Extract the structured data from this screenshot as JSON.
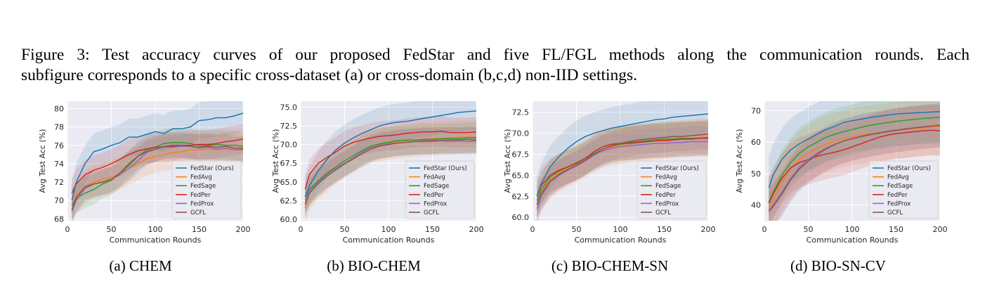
{
  "caption": {
    "line1": "Figure 3: Test accuracy curves of our proposed FedStar and five FL/FGL methods along the communication rounds. Each",
    "line2": "subfigure corresponds to a specific cross-dataset (a) or cross-domain (b,c,d) non-IID settings."
  },
  "series_names": [
    "FedStar (Ours)",
    "FedAvg",
    "FedSage",
    "FedPer",
    "FedProx",
    "GCFL"
  ],
  "series_colors": [
    "#1f77b4",
    "#ff7f0e",
    "#2ca02c",
    "#d62728",
    "#9467bd",
    "#8c564b"
  ],
  "chart_data": [
    {
      "type": "line",
      "subcaption": "(a) CHEM",
      "xlabel": "Communication Rounds",
      "ylabel": "Avg Test Acc (%)",
      "xlim": [
        0,
        200
      ],
      "ylim": [
        67.8,
        80.8
      ],
      "xticks": [
        0,
        50,
        100,
        150,
        200
      ],
      "yticks": [
        68,
        70,
        72,
        74,
        76,
        78,
        80
      ],
      "ytick_labels": [
        "68",
        "70",
        "72",
        "74",
        "76",
        "78",
        "80"
      ],
      "grid": true,
      "legend_position": "lower-right",
      "x": [
        5,
        10,
        20,
        30,
        40,
        50,
        60,
        70,
        80,
        90,
        100,
        110,
        120,
        130,
        140,
        150,
        160,
        170,
        180,
        190,
        200
      ],
      "series": [
        {
          "name": "FedStar (Ours)",
          "values": [
            70.0,
            72.0,
            74.0,
            75.3,
            75.6,
            76.0,
            76.3,
            76.9,
            76.9,
            77.2,
            77.5,
            77.3,
            77.8,
            77.8,
            78.0,
            78.7,
            78.8,
            79.0,
            79.0,
            79.2,
            79.5
          ]
        },
        {
          "name": "FedAvg",
          "values": [
            69.5,
            70.5,
            71.5,
            72.0,
            72.3,
            72.5,
            73.0,
            73.5,
            74.0,
            74.5,
            74.8,
            75.0,
            75.2,
            75.3,
            75.5,
            75.5,
            75.6,
            75.5,
            75.6,
            75.7,
            75.6
          ]
        },
        {
          "name": "FedSage",
          "values": [
            69.5,
            70.2,
            70.8,
            71.2,
            71.8,
            72.2,
            73.0,
            73.8,
            74.8,
            75.5,
            75.8,
            76.2,
            76.3,
            76.3,
            76.2,
            76.0,
            76.0,
            76.1,
            76.0,
            76.0,
            75.9
          ]
        },
        {
          "name": "FedPer",
          "values": [
            70.8,
            71.8,
            72.8,
            73.3,
            73.6,
            74.0,
            74.5,
            75.0,
            75.4,
            75.6,
            75.8,
            75.8,
            75.9,
            76.0,
            76.0,
            76.1,
            76.1,
            76.2,
            76.4,
            76.5,
            76.7
          ]
        },
        {
          "name": "FedProx",
          "values": [
            68.8,
            70.0,
            71.3,
            71.8,
            72.0,
            72.3,
            72.8,
            73.5,
            74.3,
            75.2,
            75.6,
            75.8,
            75.8,
            75.9,
            75.9,
            75.7,
            75.8,
            75.6,
            75.7,
            75.5,
            75.5
          ]
        },
        {
          "name": "GCFL",
          "values": [
            69.0,
            70.3,
            71.5,
            71.8,
            72.0,
            72.3,
            73.0,
            74.0,
            74.8,
            75.3,
            75.6,
            75.9,
            76.0,
            76.0,
            75.9,
            75.8,
            75.9,
            75.8,
            75.9,
            75.7,
            75.7
          ]
        }
      ]
    },
    {
      "type": "line",
      "subcaption": "(b) BIO-CHEM",
      "xlabel": "Communication Rounds",
      "ylabel": "Avg Test Acc (%)",
      "xlim": [
        0,
        200
      ],
      "ylim": [
        59.8,
        75.8
      ],
      "xticks": [
        0,
        50,
        100,
        150,
        200
      ],
      "yticks": [
        60.0,
        62.5,
        65.0,
        67.5,
        70.0,
        72.5,
        75.0
      ],
      "ytick_labels": [
        "60.0",
        "62.5",
        "65.0",
        "67.5",
        "70.0",
        "72.5",
        "75.0"
      ],
      "grid": true,
      "legend_position": "lower-right",
      "x": [
        5,
        10,
        20,
        30,
        40,
        50,
        60,
        70,
        80,
        90,
        100,
        110,
        120,
        130,
        140,
        150,
        160,
        170,
        180,
        190,
        200
      ],
      "series": [
        {
          "name": "FedStar (Ours)",
          "values": [
            63.0,
            64.5,
            66.5,
            68.0,
            69.3,
            70.2,
            70.9,
            71.5,
            72.0,
            72.5,
            72.8,
            73.0,
            73.1,
            73.3,
            73.5,
            73.7,
            73.9,
            74.1,
            74.3,
            74.4,
            74.5
          ]
        },
        {
          "name": "FedAvg",
          "values": [
            61.5,
            63.5,
            65.0,
            66.0,
            67.0,
            67.8,
            68.5,
            69.2,
            69.8,
            70.0,
            70.2,
            70.4,
            70.5,
            70.6,
            70.7,
            70.8,
            70.8,
            70.9,
            71.0,
            71.0,
            71.0
          ]
        },
        {
          "name": "FedSage",
          "values": [
            63.0,
            64.0,
            65.2,
            66.2,
            67.0,
            67.8,
            68.5,
            69.2,
            69.8,
            70.1,
            70.3,
            70.5,
            70.6,
            70.6,
            70.7,
            70.7,
            70.8,
            70.8,
            70.8,
            70.9,
            70.9
          ]
        },
        {
          "name": "FedPer",
          "values": [
            64.0,
            66.0,
            67.5,
            68.3,
            69.0,
            69.8,
            70.3,
            70.6,
            70.9,
            71.1,
            71.2,
            71.3,
            71.5,
            71.6,
            71.7,
            71.7,
            71.8,
            71.6,
            71.6,
            71.6,
            71.7
          ]
        },
        {
          "name": "FedProx",
          "values": [
            62.5,
            63.8,
            65.0,
            66.0,
            66.8,
            67.5,
            68.2,
            69.0,
            69.6,
            69.9,
            70.1,
            70.2,
            70.3,
            70.4,
            70.4,
            70.4,
            70.5,
            70.4,
            70.5,
            70.4,
            70.5
          ]
        },
        {
          "name": "GCFL",
          "values": [
            62.0,
            63.5,
            64.8,
            65.8,
            66.6,
            67.4,
            68.1,
            68.8,
            69.4,
            69.8,
            70.0,
            70.2,
            70.3,
            70.4,
            70.5,
            70.5,
            70.6,
            70.6,
            70.6,
            70.7,
            70.6
          ]
        }
      ]
    },
    {
      "type": "line",
      "subcaption": "(c) BIO-CHEM-SN",
      "xlabel": "Communication Rounds",
      "ylabel": "Avg Test Acc (%)",
      "xlim": [
        0,
        200
      ],
      "ylim": [
        59.6,
        73.8
      ],
      "xticks": [
        0,
        50,
        100,
        150,
        200
      ],
      "yticks": [
        60.0,
        62.5,
        65.0,
        67.5,
        70.0,
        72.5
      ],
      "ytick_labels": [
        "60.0",
        "62.5",
        "65.0",
        "67.5",
        "70.0",
        "72.5"
      ],
      "grid": true,
      "legend_position": "lower-right",
      "x": [
        5,
        10,
        20,
        30,
        40,
        50,
        60,
        70,
        80,
        90,
        100,
        110,
        120,
        130,
        140,
        150,
        160,
        170,
        180,
        190,
        200
      ],
      "series": [
        {
          "name": "FedStar (Ours)",
          "values": [
            62.5,
            64.0,
            66.0,
            67.2,
            68.2,
            69.0,
            69.6,
            70.0,
            70.3,
            70.6,
            70.8,
            71.0,
            71.2,
            71.4,
            71.6,
            71.7,
            71.9,
            72.0,
            72.1,
            72.2,
            72.3
          ]
        },
        {
          "name": "FedAvg",
          "values": [
            61.5,
            63.0,
            64.5,
            65.3,
            65.9,
            66.4,
            67.0,
            67.6,
            68.1,
            68.4,
            68.6,
            68.8,
            68.9,
            69.0,
            69.1,
            69.2,
            69.3,
            69.4,
            69.4,
            69.5,
            69.5
          ]
        },
        {
          "name": "FedSage",
          "values": [
            62.0,
            63.3,
            64.8,
            65.5,
            66.0,
            66.5,
            67.0,
            67.6,
            68.1,
            68.5,
            68.7,
            68.9,
            69.0,
            69.1,
            69.2,
            69.3,
            69.3,
            69.4,
            69.4,
            69.4,
            69.5
          ]
        },
        {
          "name": "FedPer",
          "values": [
            62.5,
            63.8,
            65.0,
            65.6,
            66.0,
            66.4,
            67.0,
            67.8,
            68.4,
            68.7,
            68.8,
            68.8,
            68.9,
            69.0,
            69.1,
            69.1,
            69.2,
            69.3,
            69.3,
            69.4,
            69.4
          ]
        },
        {
          "name": "FedProx",
          "values": [
            61.0,
            62.5,
            64.2,
            65.0,
            65.6,
            66.1,
            66.7,
            67.4,
            67.9,
            68.2,
            68.4,
            68.5,
            68.6,
            68.7,
            68.8,
            68.8,
            68.9,
            68.9,
            69.0,
            69.0,
            69.0
          ]
        },
        {
          "name": "GCFL",
          "values": [
            61.5,
            62.8,
            64.3,
            65.1,
            65.7,
            66.2,
            66.8,
            67.5,
            68.1,
            68.5,
            68.8,
            69.0,
            69.2,
            69.3,
            69.4,
            69.5,
            69.6,
            69.6,
            69.7,
            69.8,
            69.9
          ]
        }
      ]
    },
    {
      "type": "line",
      "subcaption": "(d) BIO-SN-CV",
      "xlabel": "Communication Rounds",
      "ylabel": "Avg Test Acc (%)",
      "xlim": [
        0,
        200
      ],
      "ylim": [
        35,
        73
      ],
      "xticks": [
        0,
        50,
        100,
        150,
        200
      ],
      "yticks": [
        40,
        50,
        60,
        70
      ],
      "ytick_labels": [
        "40",
        "50",
        "60",
        "70"
      ],
      "grid": true,
      "legend_position": "lower-right",
      "x": [
        5,
        10,
        20,
        30,
        40,
        50,
        60,
        70,
        80,
        90,
        100,
        110,
        120,
        130,
        140,
        150,
        160,
        170,
        180,
        190,
        200
      ],
      "series": [
        {
          "name": "FedStar (Ours)",
          "values": [
            45.5,
            49.5,
            54.5,
            57.5,
            59.5,
            61.0,
            62.5,
            64.0,
            65.0,
            66.2,
            66.8,
            67.3,
            67.8,
            68.2,
            68.6,
            68.9,
            69.1,
            69.3,
            69.4,
            69.6,
            69.7
          ]
        },
        {
          "name": "FedAvg",
          "values": [
            39.5,
            41.5,
            47.0,
            51.5,
            54.5,
            56.5,
            58.0,
            59.3,
            60.3,
            61.1,
            61.7,
            62.2,
            62.6,
            63.0,
            63.4,
            63.7,
            64.0,
            64.3,
            64.5,
            64.8,
            65.0
          ]
        },
        {
          "name": "FedSage",
          "values": [
            41.0,
            44.0,
            49.5,
            53.5,
            56.5,
            58.5,
            60.0,
            61.5,
            62.5,
            63.3,
            64.0,
            64.7,
            65.3,
            65.8,
            66.2,
            66.6,
            66.9,
            67.2,
            67.5,
            67.7,
            67.9
          ]
        },
        {
          "name": "FedPer",
          "values": [
            40.5,
            43.5,
            48.5,
            51.8,
            53.5,
            54.5,
            55.5,
            56.2,
            56.8,
            57.5,
            58.5,
            59.5,
            60.5,
            61.5,
            62.2,
            62.7,
            63.0,
            63.3,
            63.6,
            63.8,
            63.6
          ]
        },
        {
          "name": "FedProx",
          "values": [
            38.5,
            40.0,
            44.0,
            48.5,
            52.0,
            54.5,
            56.5,
            58.0,
            59.3,
            60.3,
            61.0,
            61.7,
            62.3,
            62.8,
            63.3,
            63.7,
            64.1,
            64.5,
            64.8,
            65.1,
            65.3
          ]
        },
        {
          "name": "GCFL",
          "values": [
            38.0,
            39.5,
            43.5,
            48.0,
            51.5,
            54.0,
            56.0,
            57.8,
            59.2,
            60.3,
            61.1,
            61.8,
            62.4,
            62.9,
            63.4,
            63.8,
            64.2,
            64.5,
            64.8,
            65.1,
            65.4
          ]
        }
      ]
    }
  ]
}
